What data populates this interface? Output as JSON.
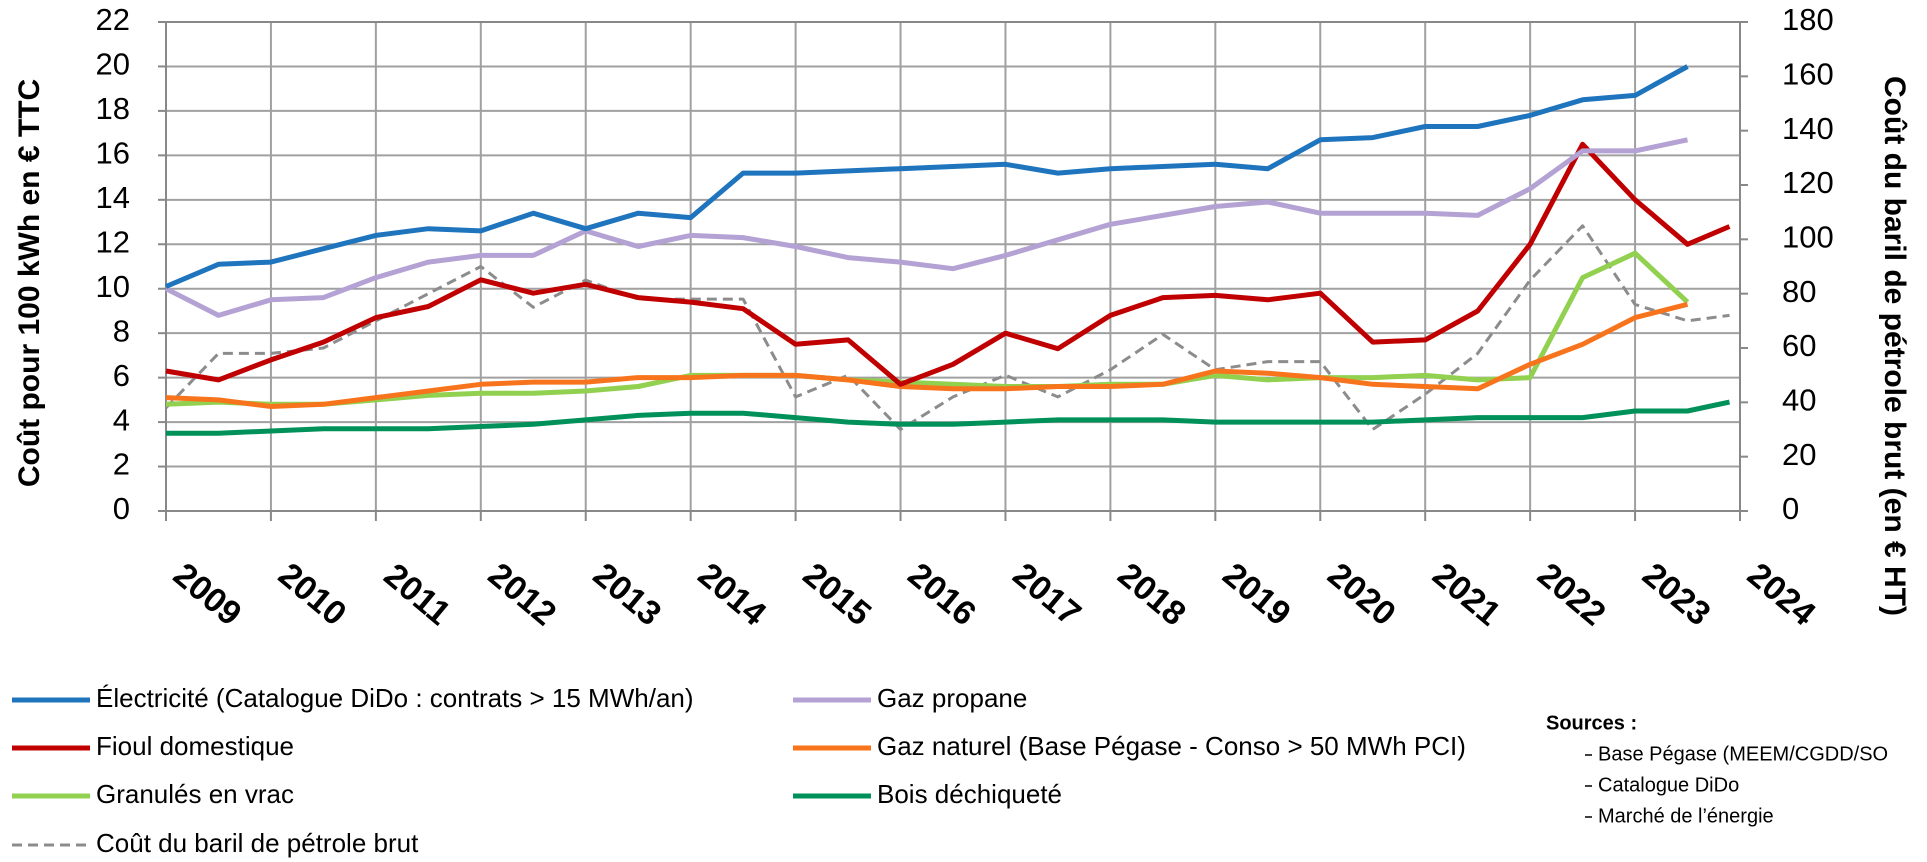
{
  "chart_data": {
    "type": "line",
    "y_label": "Coût pour 100 kWh en € TTC",
    "y2_label": "Coût du baril de pétrole brut (en € HT)",
    "x": [
      2009,
      2009.5,
      2010,
      2010.5,
      2011,
      2011.5,
      2012,
      2012.5,
      2013,
      2013.5,
      2014,
      2014.5,
      2015,
      2015.5,
      2016,
      2016.5,
      2017,
      2017.5,
      2018,
      2018.5,
      2019,
      2019.5,
      2020,
      2020.5,
      2021,
      2021.5,
      2022,
      2022.5,
      2023,
      2023.5,
      2023.9
    ],
    "xlim": [
      2009,
      2024
    ],
    "xticks": [
      2009,
      2010,
      2011,
      2012,
      2013,
      2014,
      2015,
      2016,
      2017,
      2018,
      2019,
      2020,
      2021,
      2022,
      2023,
      2024
    ],
    "ylim": [
      0,
      22
    ],
    "yticks": [
      0,
      2,
      4,
      6,
      8,
      10,
      12,
      14,
      16,
      18,
      20,
      22
    ],
    "y2lim": [
      0,
      180
    ],
    "y2ticks": [
      0,
      20,
      40,
      60,
      80,
      100,
      120,
      140,
      160,
      180
    ],
    "grid": true,
    "series": [
      {
        "name": "Électricité (Catalogue DiDo : contrats > 15 MWh/an)",
        "color": "#1f74be",
        "values": [
          10.1,
          11.1,
          11.2,
          11.8,
          12.4,
          12.7,
          12.6,
          13.4,
          12.7,
          13.4,
          13.2,
          15.2,
          15.2,
          15.3,
          15.4,
          15.5,
          15.6,
          15.2,
          15.4,
          15.5,
          15.6,
          15.4,
          16.7,
          16.8,
          17.3,
          17.3,
          17.8,
          18.5,
          18.7,
          20.0,
          null
        ]
      },
      {
        "name": "Gaz propane",
        "color": "#b3a2d3",
        "values": [
          10.0,
          8.8,
          9.5,
          9.6,
          10.5,
          11.2,
          11.5,
          11.5,
          12.6,
          11.9,
          12.4,
          12.3,
          11.9,
          11.4,
          11.2,
          10.9,
          11.5,
          12.2,
          12.9,
          13.3,
          13.7,
          13.9,
          13.4,
          13.4,
          13.4,
          13.3,
          14.5,
          16.2,
          16.2,
          16.7,
          null
        ]
      },
      {
        "name": "Fioul domestique",
        "color": "#c00000",
        "values": [
          6.3,
          5.9,
          6.8,
          7.6,
          8.7,
          9.2,
          10.4,
          9.8,
          10.2,
          9.6,
          9.4,
          9.1,
          7.5,
          7.7,
          5.7,
          6.6,
          8.0,
          7.3,
          8.8,
          9.6,
          9.7,
          9.5,
          9.8,
          7.6,
          7.7,
          9.0,
          12.0,
          16.5,
          14.0,
          12.0,
          12.8
        ]
      },
      {
        "name": "Gaz naturel (Base Pégase - Conso > 50 MWh PCI)",
        "color": "#f7741c",
        "values": [
          5.1,
          5.0,
          4.7,
          4.8,
          5.1,
          5.4,
          5.7,
          5.8,
          5.8,
          6.0,
          6.0,
          6.1,
          6.1,
          5.9,
          5.6,
          5.5,
          5.5,
          5.6,
          5.6,
          5.7,
          6.3,
          6.2,
          6.0,
          5.7,
          5.6,
          5.5,
          6.6,
          7.5,
          8.7,
          9.3,
          null
        ]
      },
      {
        "name": "Granulés en vrac",
        "color": "#92d050",
        "values": [
          4.8,
          4.9,
          4.8,
          4.8,
          5.0,
          5.2,
          5.3,
          5.3,
          5.4,
          5.6,
          6.1,
          6.1,
          6.1,
          5.9,
          5.8,
          5.7,
          5.6,
          5.6,
          5.7,
          5.7,
          6.1,
          5.9,
          6.0,
          6.0,
          6.1,
          5.9,
          6.0,
          10.5,
          11.6,
          9.4,
          null
        ]
      },
      {
        "name": "Bois déchiqueté",
        "color": "#00915a",
        "values": [
          3.5,
          3.5,
          3.6,
          3.7,
          3.7,
          3.7,
          3.8,
          3.9,
          4.1,
          4.3,
          4.4,
          4.4,
          4.2,
          4.0,
          3.9,
          3.9,
          4.0,
          4.1,
          4.1,
          4.1,
          4.0,
          4.0,
          4.0,
          4.0,
          4.1,
          4.2,
          4.2,
          4.2,
          4.5,
          4.5,
          4.9
        ]
      },
      {
        "name": "Coût du baril de pétrole brut",
        "color": "#8c8c8c",
        "axis": "y2",
        "line_style": "dashed",
        "values": [
          38,
          58,
          58,
          60,
          70,
          80,
          90,
          75,
          85,
          78,
          78,
          78,
          42,
          50,
          30,
          42,
          50,
          42,
          52,
          65,
          52,
          55,
          55,
          30,
          43,
          58,
          85,
          105,
          76,
          70,
          72
        ]
      }
    ],
    "sources_title": "Sources :",
    "sources": [
      "Base Pégase (MEEM/CGDD/SO",
      "Catalogue DiDo",
      "Marché de l’énergie"
    ]
  }
}
